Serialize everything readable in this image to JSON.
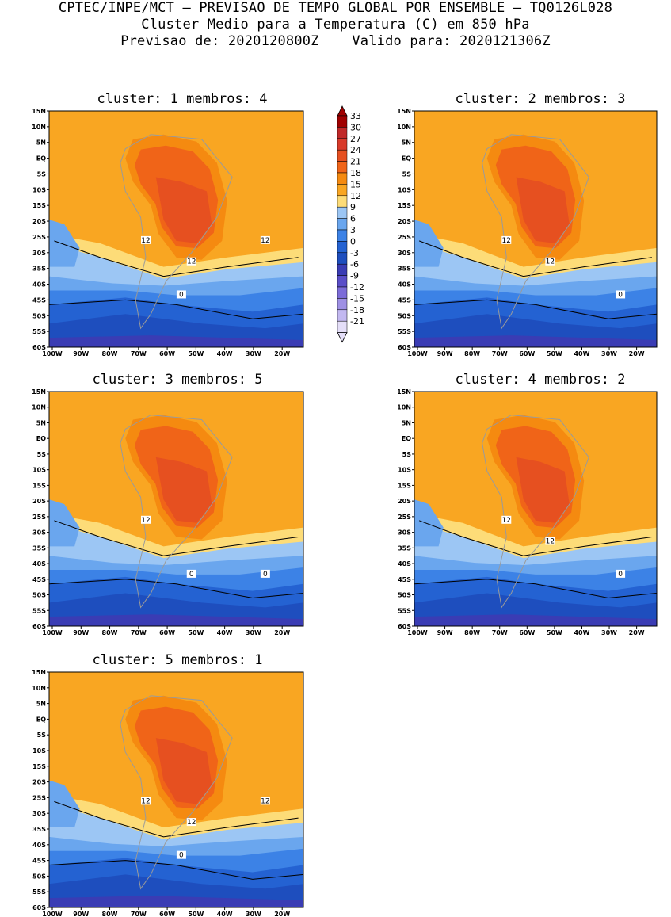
{
  "header": {
    "line1": "CPTEC/INPE/MCT — PREVISAO DE TEMPO GLOBAL POR ENSEMBLE — TQ0126L028",
    "line2": "Cluster Medio para a Temperatura (C) em 850 hPa",
    "line3": "Previsao de: 2020120800Z    Valido para: 2020121306Z"
  },
  "colorbar": {
    "levels": [
      "33",
      "30",
      "27",
      "24",
      "21",
      "18",
      "15",
      "12",
      "9",
      "6",
      "3",
      "0",
      "-3",
      "-6",
      "-9",
      "-12",
      "-15",
      "-18",
      "-21"
    ],
    "colors": [
      "#a00000",
      "#c02828",
      "#d83a2a",
      "#e65020",
      "#f06418",
      "#f58a10",
      "#f9a622",
      "#fddc78",
      "#9cc6f4",
      "#6aa6ee",
      "#3c82e6",
      "#2462d2",
      "#1e4ebe",
      "#3a3cb4",
      "#5a4ec8",
      "#7c6cd8",
      "#9e90e4",
      "#c2b8f0",
      "#e4def8"
    ]
  },
  "lat_ticks": [
    "15N",
    "10N",
    "5N",
    "EQ",
    "5S",
    "10S",
    "15S",
    "20S",
    "25S",
    "30S",
    "35S",
    "40S",
    "45S",
    "50S",
    "55S",
    "60S"
  ],
  "lon_ticks": [
    "100W",
    "90W",
    "80W",
    "70W",
    "60W",
    "50W",
    "40W",
    "30W",
    "20W"
  ],
  "panels": [
    {
      "title": "cluster: 1   membros: 4",
      "contour_labels": [
        "12",
        "12",
        "12",
        "0"
      ]
    },
    {
      "title": "cluster: 2   membros: 3",
      "contour_labels": [
        "12",
        "12",
        "0"
      ]
    },
    {
      "title": "cluster: 3   membros: 5",
      "contour_labels": [
        "12",
        "0",
        "0"
      ]
    },
    {
      "title": "cluster: 4   membros: 2",
      "contour_labels": [
        "12",
        "12",
        "0"
      ]
    },
    {
      "title": "cluster: 5   membros: 1",
      "contour_labels": [
        "12",
        "12",
        "12",
        "0"
      ]
    }
  ]
}
